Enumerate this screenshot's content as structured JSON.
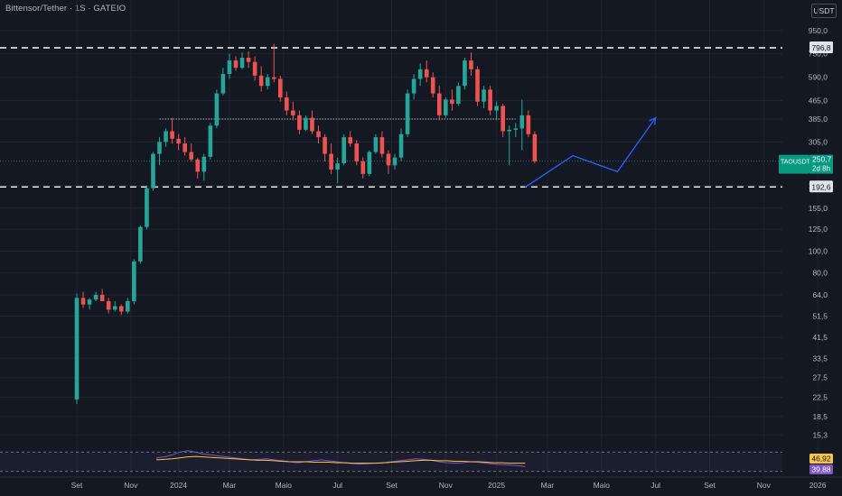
{
  "header": {
    "title": "Bittensor/Tether · 1S · GATEIO",
    "currency": "USDT"
  },
  "chart_data": {
    "type": "candlestick",
    "symbol": "TAOUSDT",
    "last_price": "250,7",
    "countdown": "2d 8h",
    "price_axis": {
      "scale": "log",
      "range": [
        13.5,
        1060
      ],
      "ticks": [
        "950,0",
        "750,0",
        "590,0",
        "465,0",
        "385,0",
        "305,0",
        "250,7",
        "195,0",
        "155,0",
        "125,0",
        "100,0",
        "80,0",
        "64,0",
        "51,5",
        "41,5",
        "33,5",
        "27,5",
        "22,5",
        "18,5",
        "15,3"
      ]
    },
    "time_axis": {
      "labels": [
        "Set",
        "Nov",
        "2024",
        "Mar",
        "Maio",
        "Jul",
        "Set",
        "Nov",
        "2025",
        "Mar",
        "Maio",
        "Jul",
        "Set",
        "Nov",
        "2026"
      ]
    },
    "levels": [
      {
        "value": 796.8,
        "label": "796,8",
        "style": "dashed",
        "color": "#ffffff"
      },
      {
        "value": 192.6,
        "label": "192,6",
        "style": "dashed",
        "color": "#ffffff"
      },
      {
        "value": 385.0,
        "style": "dotted",
        "color": "#b2b5be",
        "from_week": 13,
        "to_week": 69
      }
    ],
    "candles": [
      [
        22,
        65,
        21,
        62
      ],
      [
        62,
        66,
        56,
        58
      ],
      [
        58,
        62,
        55,
        61
      ],
      [
        61,
        66,
        60,
        64
      ],
      [
        64,
        68,
        60,
        60
      ],
      [
        60,
        62,
        53,
        55
      ],
      [
        55,
        60,
        54,
        57
      ],
      [
        57,
        58,
        52,
        54
      ],
      [
        54,
        62,
        53,
        60
      ],
      [
        60,
        92,
        58,
        90
      ],
      [
        90,
        130,
        88,
        128
      ],
      [
        128,
        195,
        125,
        190
      ],
      [
        190,
        275,
        185,
        270
      ],
      [
        270,
        320,
        240,
        305
      ],
      [
        305,
        350,
        290,
        340
      ],
      [
        340,
        390,
        300,
        315
      ],
      [
        315,
        330,
        280,
        300
      ],
      [
        300,
        320,
        265,
        275
      ],
      [
        275,
        300,
        250,
        255
      ],
      [
        255,
        260,
        210,
        225
      ],
      [
        225,
        270,
        205,
        262
      ],
      [
        262,
        370,
        255,
        360
      ],
      [
        360,
        520,
        350,
        500
      ],
      [
        500,
        650,
        490,
        610
      ],
      [
        610,
        750,
        580,
        700
      ],
      [
        700,
        730,
        630,
        650
      ],
      [
        650,
        760,
        640,
        720
      ],
      [
        720,
        770,
        650,
        690
      ],
      [
        690,
        730,
        570,
        600
      ],
      [
        600,
        660,
        510,
        540
      ],
      [
        540,
        610,
        520,
        590
      ],
      [
        590,
        830,
        560,
        580
      ],
      [
        580,
        600,
        460,
        480
      ],
      [
        480,
        510,
        400,
        420
      ],
      [
        420,
        460,
        380,
        400
      ],
      [
        400,
        420,
        330,
        345
      ],
      [
        345,
        400,
        340,
        390
      ],
      [
        390,
        420,
        330,
        340
      ],
      [
        340,
        360,
        300,
        320
      ],
      [
        320,
        330,
        250,
        270
      ],
      [
        270,
        300,
        220,
        230
      ],
      [
        230,
        260,
        200,
        245
      ],
      [
        245,
        330,
        240,
        320
      ],
      [
        320,
        340,
        290,
        300
      ],
      [
        300,
        310,
        240,
        250
      ],
      [
        250,
        260,
        210,
        220
      ],
      [
        220,
        280,
        215,
        275
      ],
      [
        275,
        330,
        270,
        320
      ],
      [
        320,
        340,
        260,
        270
      ],
      [
        270,
        280,
        220,
        240
      ],
      [
        240,
        270,
        230,
        260
      ],
      [
        260,
        350,
        250,
        330
      ],
      [
        330,
        520,
        320,
        500
      ],
      [
        500,
        610,
        470,
        580
      ],
      [
        580,
        680,
        540,
        640
      ],
      [
        640,
        700,
        560,
        590
      ],
      [
        590,
        620,
        480,
        500
      ],
      [
        500,
        540,
        380,
        400
      ],
      [
        400,
        480,
        390,
        470
      ],
      [
        470,
        520,
        420,
        450
      ],
      [
        450,
        560,
        440,
        540
      ],
      [
        540,
        720,
        520,
        700
      ],
      [
        700,
        760,
        600,
        640
      ],
      [
        640,
        660,
        440,
        460
      ],
      [
        460,
        540,
        430,
        520
      ],
      [
        520,
        540,
        400,
        420
      ],
      [
        420,
        460,
        380,
        440
      ],
      [
        440,
        450,
        320,
        340
      ],
      [
        340,
        360,
        240,
        345
      ],
      [
        345,
        370,
        320,
        350
      ],
      [
        350,
        470,
        280,
        400
      ],
      [
        400,
        420,
        320,
        330
      ],
      [
        330,
        340,
        245,
        250
      ]
    ],
    "projection": [
      [
        70.5,
        192
      ],
      [
        78,
        265
      ],
      [
        85,
        225
      ],
      [
        91,
        390
      ]
    ],
    "rsi": {
      "value": "39,88",
      "ma_value": "46,92",
      "upper": 70,
      "lower": 30,
      "line": [
        58,
        60,
        64,
        70,
        73,
        70,
        66,
        64,
        62,
        60,
        58,
        56,
        54,
        55,
        56,
        54,
        52,
        50,
        48,
        50,
        52,
        54,
        52,
        50,
        48,
        46,
        45,
        46,
        47,
        48,
        50,
        52,
        54,
        56,
        55,
        53,
        50,
        48,
        47,
        48,
        50,
        49,
        47,
        45,
        44,
        43,
        42,
        40
      ],
      "ma": [
        54,
        55,
        56,
        58,
        60,
        61,
        60,
        59,
        58,
        57,
        56,
        55,
        54,
        53,
        53,
        52,
        51,
        50,
        50,
        50,
        49,
        49,
        49,
        48,
        48,
        47,
        47,
        47,
        47,
        48,
        49,
        50,
        51,
        52,
        53,
        53,
        52,
        52,
        51,
        51,
        50,
        50,
        49,
        48,
        48,
        47,
        47,
        47
      ]
    }
  }
}
